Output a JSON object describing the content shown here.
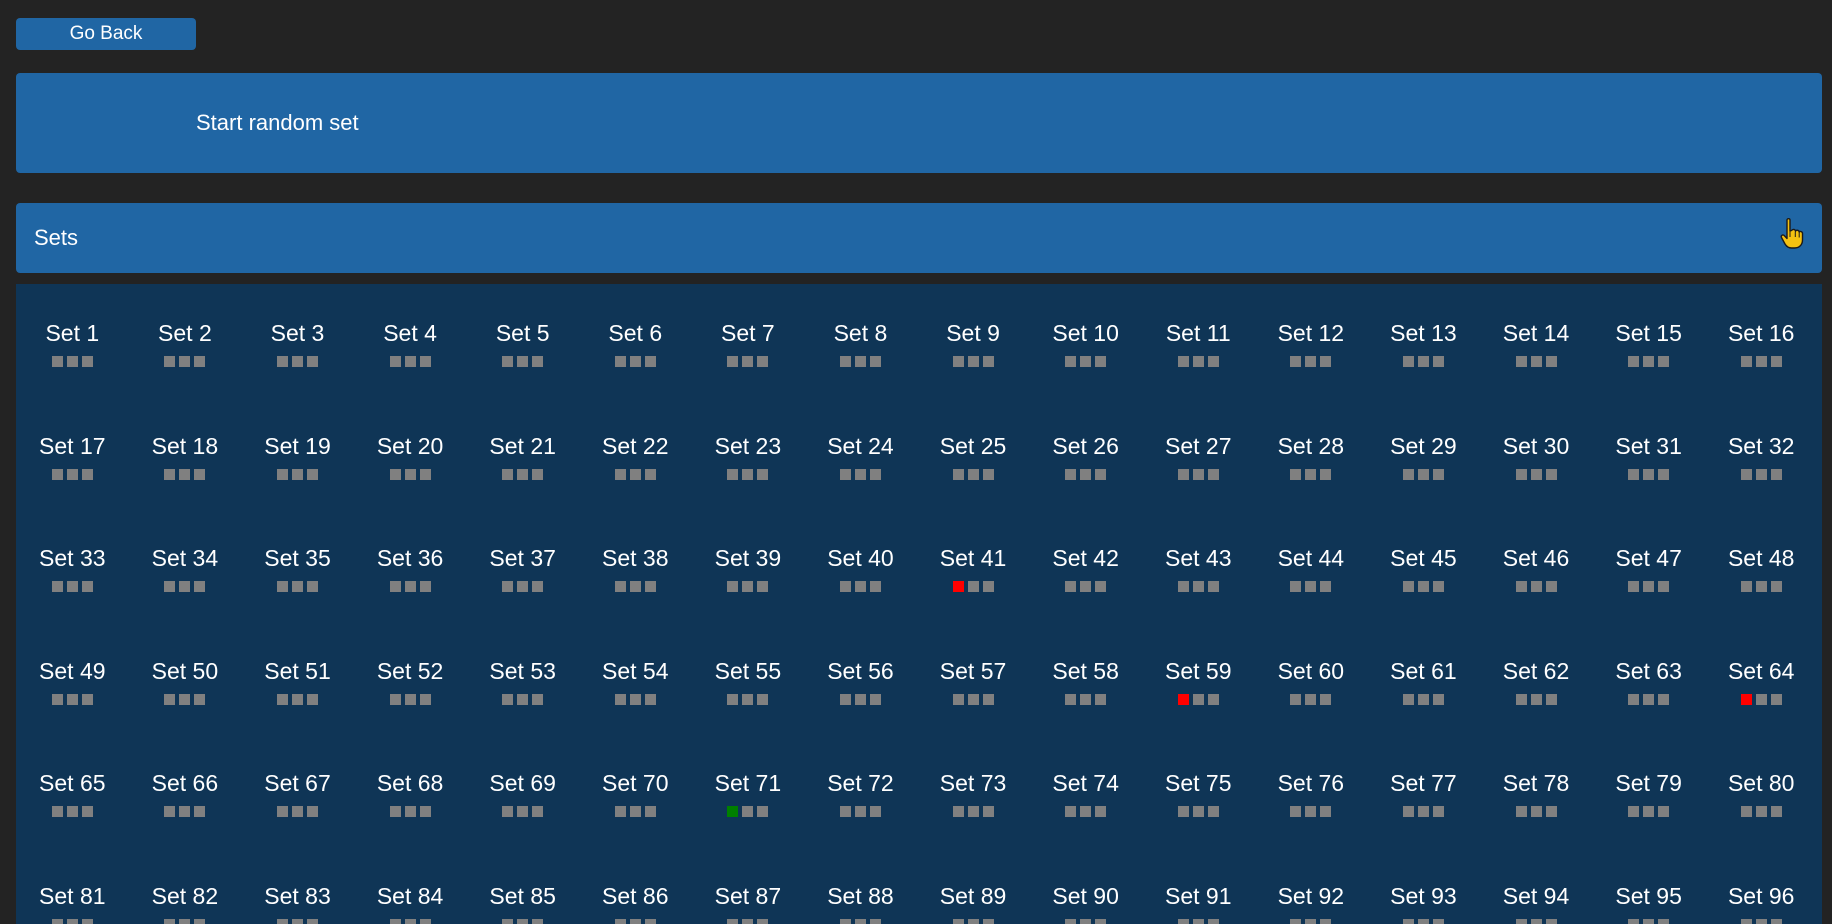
{
  "nav": {
    "go_back_label": "Go Back"
  },
  "random": {
    "label": "Start random set"
  },
  "sets_section": {
    "title": "Sets"
  },
  "colors": {
    "background": "#232323",
    "accent": "#2066a4",
    "panel": "#0f3556",
    "dot_default": "#808080",
    "dot_wrong": "#ff0000",
    "dot_correct": "#008000"
  },
  "sets": [
    {
      "label": "Set 1",
      "dots": [
        "none",
        "none",
        "none"
      ]
    },
    {
      "label": "Set 2",
      "dots": [
        "none",
        "none",
        "none"
      ]
    },
    {
      "label": "Set 3",
      "dots": [
        "none",
        "none",
        "none"
      ]
    },
    {
      "label": "Set 4",
      "dots": [
        "none",
        "none",
        "none"
      ]
    },
    {
      "label": "Set 5",
      "dots": [
        "none",
        "none",
        "none"
      ]
    },
    {
      "label": "Set 6",
      "dots": [
        "none",
        "none",
        "none"
      ]
    },
    {
      "label": "Set 7",
      "dots": [
        "none",
        "none",
        "none"
      ]
    },
    {
      "label": "Set 8",
      "dots": [
        "none",
        "none",
        "none"
      ]
    },
    {
      "label": "Set 9",
      "dots": [
        "none",
        "none",
        "none"
      ]
    },
    {
      "label": "Set 10",
      "dots": [
        "none",
        "none",
        "none"
      ]
    },
    {
      "label": "Set 11",
      "dots": [
        "none",
        "none",
        "none"
      ]
    },
    {
      "label": "Set 12",
      "dots": [
        "none",
        "none",
        "none"
      ]
    },
    {
      "label": "Set 13",
      "dots": [
        "none",
        "none",
        "none"
      ]
    },
    {
      "label": "Set 14",
      "dots": [
        "none",
        "none",
        "none"
      ]
    },
    {
      "label": "Set 15",
      "dots": [
        "none",
        "none",
        "none"
      ]
    },
    {
      "label": "Set 16",
      "dots": [
        "none",
        "none",
        "none"
      ]
    },
    {
      "label": "Set 17",
      "dots": [
        "none",
        "none",
        "none"
      ]
    },
    {
      "label": "Set 18",
      "dots": [
        "none",
        "none",
        "none"
      ]
    },
    {
      "label": "Set 19",
      "dots": [
        "none",
        "none",
        "none"
      ]
    },
    {
      "label": "Set 20",
      "dots": [
        "none",
        "none",
        "none"
      ]
    },
    {
      "label": "Set 21",
      "dots": [
        "none",
        "none",
        "none"
      ]
    },
    {
      "label": "Set 22",
      "dots": [
        "none",
        "none",
        "none"
      ]
    },
    {
      "label": "Set 23",
      "dots": [
        "none",
        "none",
        "none"
      ]
    },
    {
      "label": "Set 24",
      "dots": [
        "none",
        "none",
        "none"
      ]
    },
    {
      "label": "Set 25",
      "dots": [
        "none",
        "none",
        "none"
      ]
    },
    {
      "label": "Set 26",
      "dots": [
        "none",
        "none",
        "none"
      ]
    },
    {
      "label": "Set 27",
      "dots": [
        "none",
        "none",
        "none"
      ]
    },
    {
      "label": "Set 28",
      "dots": [
        "none",
        "none",
        "none"
      ]
    },
    {
      "label": "Set 29",
      "dots": [
        "none",
        "none",
        "none"
      ]
    },
    {
      "label": "Set 30",
      "dots": [
        "none",
        "none",
        "none"
      ]
    },
    {
      "label": "Set 31",
      "dots": [
        "none",
        "none",
        "none"
      ]
    },
    {
      "label": "Set 32",
      "dots": [
        "none",
        "none",
        "none"
      ]
    },
    {
      "label": "Set 33",
      "dots": [
        "none",
        "none",
        "none"
      ]
    },
    {
      "label": "Set 34",
      "dots": [
        "none",
        "none",
        "none"
      ]
    },
    {
      "label": "Set 35",
      "dots": [
        "none",
        "none",
        "none"
      ]
    },
    {
      "label": "Set 36",
      "dots": [
        "none",
        "none",
        "none"
      ]
    },
    {
      "label": "Set 37",
      "dots": [
        "none",
        "none",
        "none"
      ]
    },
    {
      "label": "Set 38",
      "dots": [
        "none",
        "none",
        "none"
      ]
    },
    {
      "label": "Set 39",
      "dots": [
        "none",
        "none",
        "none"
      ]
    },
    {
      "label": "Set 40",
      "dots": [
        "none",
        "none",
        "none"
      ]
    },
    {
      "label": "Set 41",
      "dots": [
        "wrong",
        "none",
        "none"
      ]
    },
    {
      "label": "Set 42",
      "dots": [
        "none",
        "none",
        "none"
      ]
    },
    {
      "label": "Set 43",
      "dots": [
        "none",
        "none",
        "none"
      ]
    },
    {
      "label": "Set 44",
      "dots": [
        "none",
        "none",
        "none"
      ]
    },
    {
      "label": "Set 45",
      "dots": [
        "none",
        "none",
        "none"
      ]
    },
    {
      "label": "Set 46",
      "dots": [
        "none",
        "none",
        "none"
      ]
    },
    {
      "label": "Set 47",
      "dots": [
        "none",
        "none",
        "none"
      ]
    },
    {
      "label": "Set 48",
      "dots": [
        "none",
        "none",
        "none"
      ]
    },
    {
      "label": "Set 49",
      "dots": [
        "none",
        "none",
        "none"
      ]
    },
    {
      "label": "Set 50",
      "dots": [
        "none",
        "none",
        "none"
      ]
    },
    {
      "label": "Set 51",
      "dots": [
        "none",
        "none",
        "none"
      ]
    },
    {
      "label": "Set 52",
      "dots": [
        "none",
        "none",
        "none"
      ]
    },
    {
      "label": "Set 53",
      "dots": [
        "none",
        "none",
        "none"
      ]
    },
    {
      "label": "Set 54",
      "dots": [
        "none",
        "none",
        "none"
      ]
    },
    {
      "label": "Set 55",
      "dots": [
        "none",
        "none",
        "none"
      ]
    },
    {
      "label": "Set 56",
      "dots": [
        "none",
        "none",
        "none"
      ]
    },
    {
      "label": "Set 57",
      "dots": [
        "none",
        "none",
        "none"
      ]
    },
    {
      "label": "Set 58",
      "dots": [
        "none",
        "none",
        "none"
      ]
    },
    {
      "label": "Set 59",
      "dots": [
        "wrong",
        "none",
        "none"
      ]
    },
    {
      "label": "Set 60",
      "dots": [
        "none",
        "none",
        "none"
      ]
    },
    {
      "label": "Set 61",
      "dots": [
        "none",
        "none",
        "none"
      ]
    },
    {
      "label": "Set 62",
      "dots": [
        "none",
        "none",
        "none"
      ]
    },
    {
      "label": "Set 63",
      "dots": [
        "none",
        "none",
        "none"
      ]
    },
    {
      "label": "Set 64",
      "dots": [
        "wrong",
        "none",
        "none"
      ]
    },
    {
      "label": "Set 65",
      "dots": [
        "none",
        "none",
        "none"
      ]
    },
    {
      "label": "Set 66",
      "dots": [
        "none",
        "none",
        "none"
      ]
    },
    {
      "label": "Set 67",
      "dots": [
        "none",
        "none",
        "none"
      ]
    },
    {
      "label": "Set 68",
      "dots": [
        "none",
        "none",
        "none"
      ]
    },
    {
      "label": "Set 69",
      "dots": [
        "none",
        "none",
        "none"
      ]
    },
    {
      "label": "Set 70",
      "dots": [
        "none",
        "none",
        "none"
      ]
    },
    {
      "label": "Set 71",
      "dots": [
        "correct",
        "none",
        "none"
      ]
    },
    {
      "label": "Set 72",
      "dots": [
        "none",
        "none",
        "none"
      ]
    },
    {
      "label": "Set 73",
      "dots": [
        "none",
        "none",
        "none"
      ]
    },
    {
      "label": "Set 74",
      "dots": [
        "none",
        "none",
        "none"
      ]
    },
    {
      "label": "Set 75",
      "dots": [
        "none",
        "none",
        "none"
      ]
    },
    {
      "label": "Set 76",
      "dots": [
        "none",
        "none",
        "none"
      ]
    },
    {
      "label": "Set 77",
      "dots": [
        "none",
        "none",
        "none"
      ]
    },
    {
      "label": "Set 78",
      "dots": [
        "none",
        "none",
        "none"
      ]
    },
    {
      "label": "Set 79",
      "dots": [
        "none",
        "none",
        "none"
      ]
    },
    {
      "label": "Set 80",
      "dots": [
        "none",
        "none",
        "none"
      ]
    },
    {
      "label": "Set 81",
      "dots": [
        "none",
        "none",
        "none"
      ]
    },
    {
      "label": "Set 82",
      "dots": [
        "none",
        "none",
        "none"
      ]
    },
    {
      "label": "Set 83",
      "dots": [
        "none",
        "none",
        "none"
      ]
    },
    {
      "label": "Set 84",
      "dots": [
        "none",
        "none",
        "none"
      ]
    },
    {
      "label": "Set 85",
      "dots": [
        "none",
        "none",
        "none"
      ]
    },
    {
      "label": "Set 86",
      "dots": [
        "none",
        "none",
        "none"
      ]
    },
    {
      "label": "Set 87",
      "dots": [
        "none",
        "none",
        "none"
      ]
    },
    {
      "label": "Set 88",
      "dots": [
        "none",
        "none",
        "none"
      ]
    },
    {
      "label": "Set 89",
      "dots": [
        "none",
        "none",
        "none"
      ]
    },
    {
      "label": "Set 90",
      "dots": [
        "none",
        "none",
        "none"
      ]
    },
    {
      "label": "Set 91",
      "dots": [
        "none",
        "none",
        "none"
      ]
    },
    {
      "label": "Set 92",
      "dots": [
        "none",
        "none",
        "none"
      ]
    },
    {
      "label": "Set 93",
      "dots": [
        "none",
        "none",
        "none"
      ]
    },
    {
      "label": "Set 94",
      "dots": [
        "none",
        "none",
        "none"
      ]
    },
    {
      "label": "Set 95",
      "dots": [
        "none",
        "none",
        "none"
      ]
    },
    {
      "label": "Set 96",
      "dots": [
        "none",
        "none",
        "none"
      ]
    }
  ]
}
